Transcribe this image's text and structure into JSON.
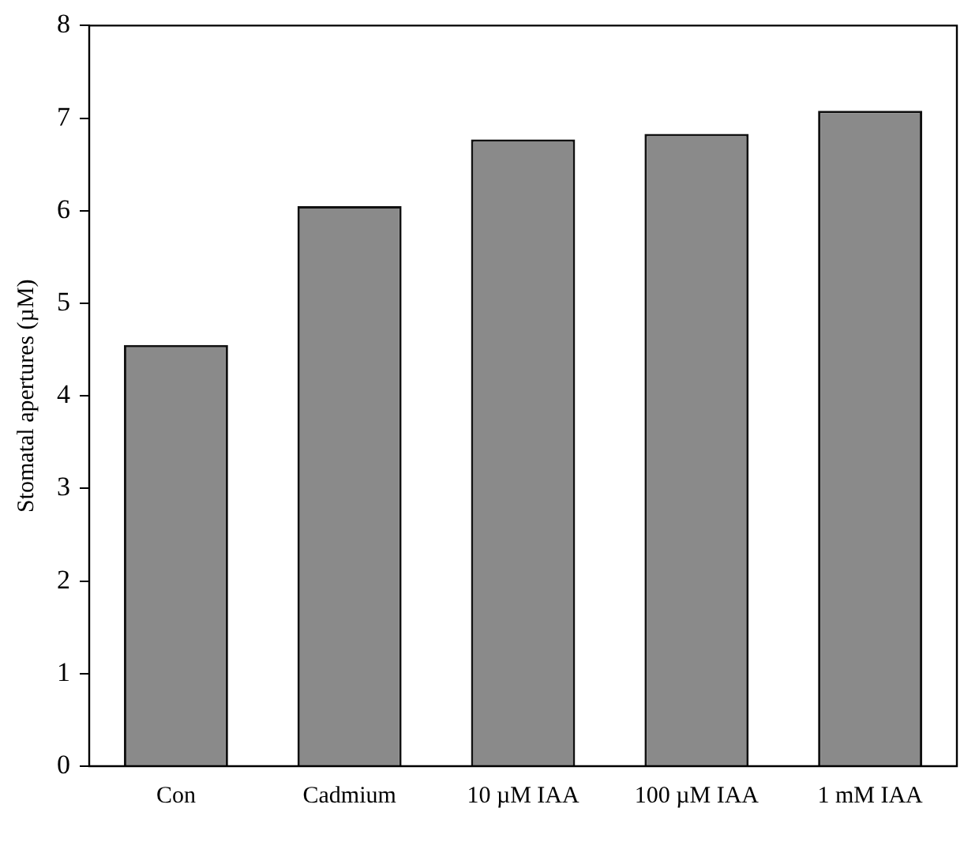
{
  "chart_data": {
    "type": "bar",
    "ylabel": "Stomatal apertures (µM)",
    "categories": [
      "Con",
      "Cadmium",
      "10 µM IAA",
      "100 µM IAA",
      "1 mM IAA"
    ],
    "values": [
      4.55,
      6.05,
      6.77,
      6.83,
      7.08
    ],
    "color": "#8a8a8a",
    "ylim": [
      0,
      8
    ],
    "yticks": [
      0,
      1,
      2,
      3,
      4,
      5,
      6,
      7,
      8
    ],
    "grid": false,
    "legend": false
  }
}
